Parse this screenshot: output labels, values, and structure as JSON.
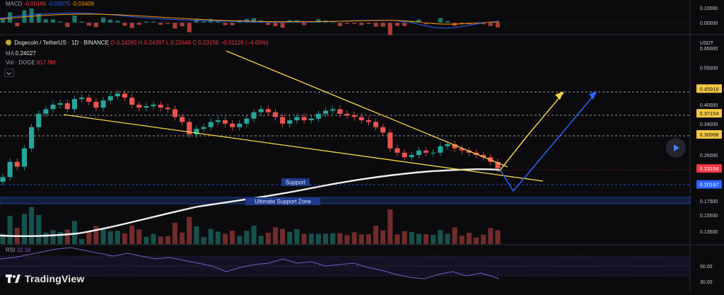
{
  "macd": {
    "label": "MACD",
    "v1": "-0.00166",
    "v2": "-0.03575",
    "v3": "-0.03409"
  },
  "symbol": {
    "name": "Dogecoin / TetherUS · 1D · BINANCE",
    "o": "O 0.24285",
    "h": "H 0.24397",
    "l": "L 0.22646",
    "c": "C 0.23156",
    "chg": "−0.01129 (−4.65%)"
  },
  "ma": {
    "label": "MA",
    "value": "0.24027"
  },
  "vol": {
    "label": "Vol · DOGE",
    "value": "817.9M"
  },
  "rsi": {
    "label": "RSI",
    "value": "32.16"
  },
  "brand": {
    "name": "TradingView"
  },
  "chart_data": {
    "type": "candlestick",
    "currency_label": "USDT",
    "price_axis_ticks": [
      "0.65000",
      "0.55000",
      "0.40000",
      "0.34000",
      "0.26000",
      "0.17500",
      "0.15500",
      "0.13500"
    ],
    "macd_axis_ticks": [
      "0.10000",
      "0.00000"
    ],
    "rsi_axis_ticks": [
      "50.00",
      "30.00"
    ],
    "level_badges": [
      {
        "value": "0.45918",
        "color": "#f5c842"
      },
      {
        "value": "0.37154",
        "color": "#f5c842"
      },
      {
        "value": "0.30998",
        "color": "#f5c842"
      },
      {
        "value": "0.23156",
        "color": "#f23645"
      },
      {
        "value": "0.20197",
        "color": "#2962ff"
      }
    ],
    "zone_labels": {
      "support": "Support",
      "ultimate": "Ultimate Support Zone"
    },
    "candles_close": [
      0.215,
      0.245,
      0.235,
      0.275,
      0.33,
      0.37,
      0.385,
      0.4,
      0.405,
      0.385,
      0.42,
      0.425,
      0.41,
      0.39,
      0.415,
      0.43,
      0.44,
      0.425,
      0.4,
      0.39,
      0.395,
      0.4,
      0.39,
      0.385,
      0.36,
      0.345,
      0.31,
      0.325,
      0.33,
      0.345,
      0.35,
      0.34,
      0.33,
      0.34,
      0.355,
      0.375,
      0.385,
      0.375,
      0.36,
      0.34,
      0.35,
      0.36,
      0.35,
      0.355,
      0.37,
      0.38,
      0.385,
      0.37,
      0.365,
      0.36,
      0.35,
      0.345,
      0.33,
      0.315,
      0.275,
      0.265,
      0.255,
      0.26,
      0.27,
      0.265,
      0.265,
      0.28,
      0.285,
      0.275,
      0.27,
      0.265,
      0.26,
      0.255,
      0.245,
      0.232
    ]
  }
}
